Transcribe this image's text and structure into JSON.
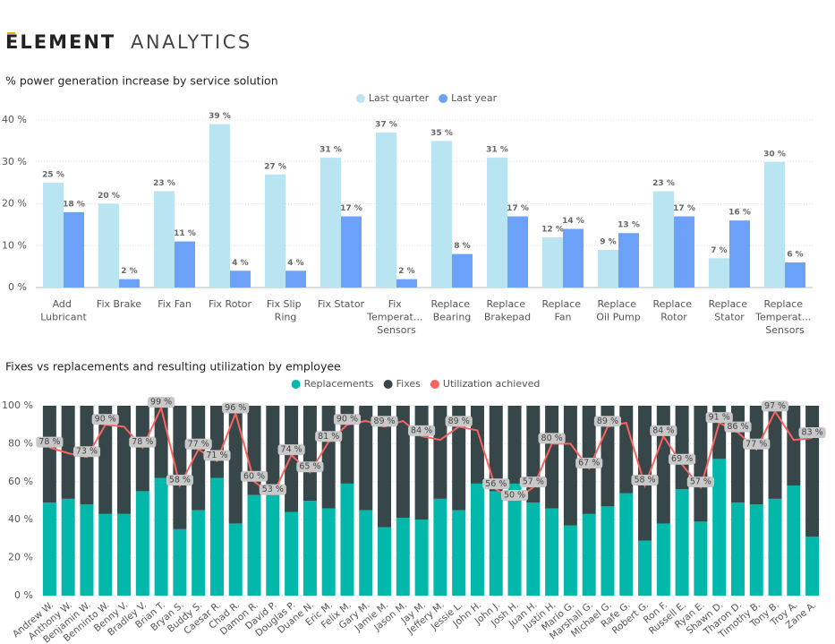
{
  "header": {
    "brand_bold": "ELEMENT",
    "brand_light": "ANALYTICS"
  },
  "chart_data": [
    {
      "type": "bar",
      "title": "% power generation increase by service solution",
      "categories": [
        "Add Lubricant",
        "Fix Brake",
        "Fix Fan",
        "Fix Rotor",
        "Fix Slip Ring",
        "Fix Stator",
        "Fix Temperat... Sensors",
        "Replace Bearing",
        "Replace Brakepad",
        "Replace Fan",
        "Replace Oil Pump",
        "Replace Rotor",
        "Replace Stator",
        "Replace Temperat... Sensors"
      ],
      "series": [
        {
          "name": "Last quarter",
          "color": "#b9e4f1",
          "values": [
            25,
            20,
            23,
            39,
            27,
            31,
            37,
            35,
            31,
            12,
            9,
            23,
            7,
            30
          ],
          "value_labels": [
            "25 %",
            "20 %",
            "23 %",
            "39 %",
            "27 %",
            "31 %",
            "37 %",
            "35 %",
            "31 %",
            "12 %",
            "9 %",
            "23 %",
            "7 %",
            "30 %"
          ]
        },
        {
          "name": "Last year",
          "color": "#6ba1f8",
          "values": [
            18,
            2,
            11,
            4,
            4,
            17,
            2,
            8,
            17,
            14,
            13,
            17,
            16,
            6
          ],
          "value_labels": [
            "18 %",
            "2 %",
            "11 %",
            "4 %",
            "4 %",
            "17 %",
            "2 %",
            "8 %",
            "17 %",
            "14 %",
            "13 %",
            "17 %",
            "16 %",
            "6 %"
          ]
        }
      ],
      "ylim": [
        0,
        40
      ],
      "yticks": [
        {
          "value": 0,
          "label": "0 %"
        },
        {
          "value": 10,
          "label": "10 %"
        },
        {
          "value": 20,
          "label": "20 %"
        },
        {
          "value": 30,
          "label": "30 %"
        },
        {
          "value": 40,
          "label": "40 %"
        }
      ],
      "grid": true,
      "legend": "top"
    },
    {
      "type": "combo",
      "title": "Fixes vs replacements and resulting utilization by employee",
      "categories": [
        "Andrew W.",
        "Anthony W.",
        "Benjamin W.",
        "Benninto W.",
        "Benny V.",
        "Bradley V.",
        "Brian T.",
        "Bryan S.",
        "Buddy S.",
        "Caesar R.",
        "Chad R.",
        "Damon R.",
        "David P.",
        "Douglas P.",
        "Duane N.",
        "Eric M.",
        "Felix M.",
        "Gary M.",
        "Jamie M.",
        "Jason M.",
        "Jay M.",
        "Jeffery M.",
        "Jessie L.",
        "John H.",
        "John J.",
        "Josh H.",
        "Juan H.",
        "Justin H.",
        "Mario G.",
        "Marshall G.",
        "Michael G.",
        "Rafe G.",
        "Robert G.",
        "Ron F.",
        "Russell E.",
        "Ryan E.",
        "Shawn D.",
        "Tharon D.",
        "Timothy B.",
        "Tony B.",
        "Troy A.",
        "Zane A."
      ],
      "series": [
        {
          "name": "Replacements",
          "type": "bar",
          "color": "#01b8aa",
          "values": [
            49,
            51,
            48,
            43,
            43,
            55,
            62,
            35,
            45,
            62,
            38,
            53,
            53,
            44,
            50,
            46,
            59,
            45,
            36,
            41,
            40,
            51,
            45,
            59,
            55,
            59,
            49,
            46,
            37,
            43,
            47,
            54,
            29,
            38,
            56,
            39,
            72,
            49,
            48,
            51,
            58,
            31
          ]
        },
        {
          "name": "Fixes",
          "type": "bar",
          "color": "#374649",
          "values": [
            51,
            49,
            52,
            57,
            57,
            45,
            38,
            65,
            55,
            38,
            62,
            47,
            47,
            56,
            50,
            54,
            41,
            55,
            64,
            59,
            60,
            49,
            55,
            41,
            45,
            41,
            51,
            54,
            63,
            57,
            53,
            46,
            71,
            62,
            44,
            61,
            28,
            51,
            52,
            49,
            42,
            69
          ]
        },
        {
          "name": "Utilization achieved",
          "type": "line",
          "color": "#fd625e",
          "values": [
            78,
            75,
            73,
            90,
            89,
            78,
            99,
            58,
            77,
            71,
            96,
            60,
            53,
            74,
            65,
            81,
            90,
            92,
            89,
            92,
            84,
            82,
            89,
            87,
            56,
            50,
            57,
            80,
            80,
            67,
            89,
            91,
            58,
            84,
            69,
            57,
            91,
            86,
            77,
            97,
            82,
            83
          ],
          "value_labels": [
            "78 %",
            null,
            "73 %",
            "90 %",
            null,
            "78 %",
            "99 %",
            "58 %",
            "77 %",
            "71 %",
            "96 %",
            "60 %",
            "53 %",
            "74 %",
            "65 %",
            "81 %",
            "90 %",
            null,
            "89 %",
            null,
            "84 %",
            null,
            "89 %",
            null,
            "56 %",
            "50 %",
            "57 %",
            "80 %",
            null,
            "67 %",
            "89 %",
            null,
            "58 %",
            "84 %",
            "69 %",
            "57 %",
            "91 %",
            "86 %",
            "77 %",
            "97 %",
            null,
            "83 %"
          ]
        }
      ],
      "stacked": true,
      "ylim": [
        0,
        100
      ],
      "yticks": [
        {
          "value": 0,
          "label": "0 %"
        },
        {
          "value": 20,
          "label": "20 %"
        },
        {
          "value": 40,
          "label": "40 %"
        },
        {
          "value": 60,
          "label": "60 %"
        },
        {
          "value": 80,
          "label": "80 %"
        },
        {
          "value": 100,
          "label": "100 %"
        }
      ],
      "grid": true,
      "legend": "top"
    }
  ]
}
